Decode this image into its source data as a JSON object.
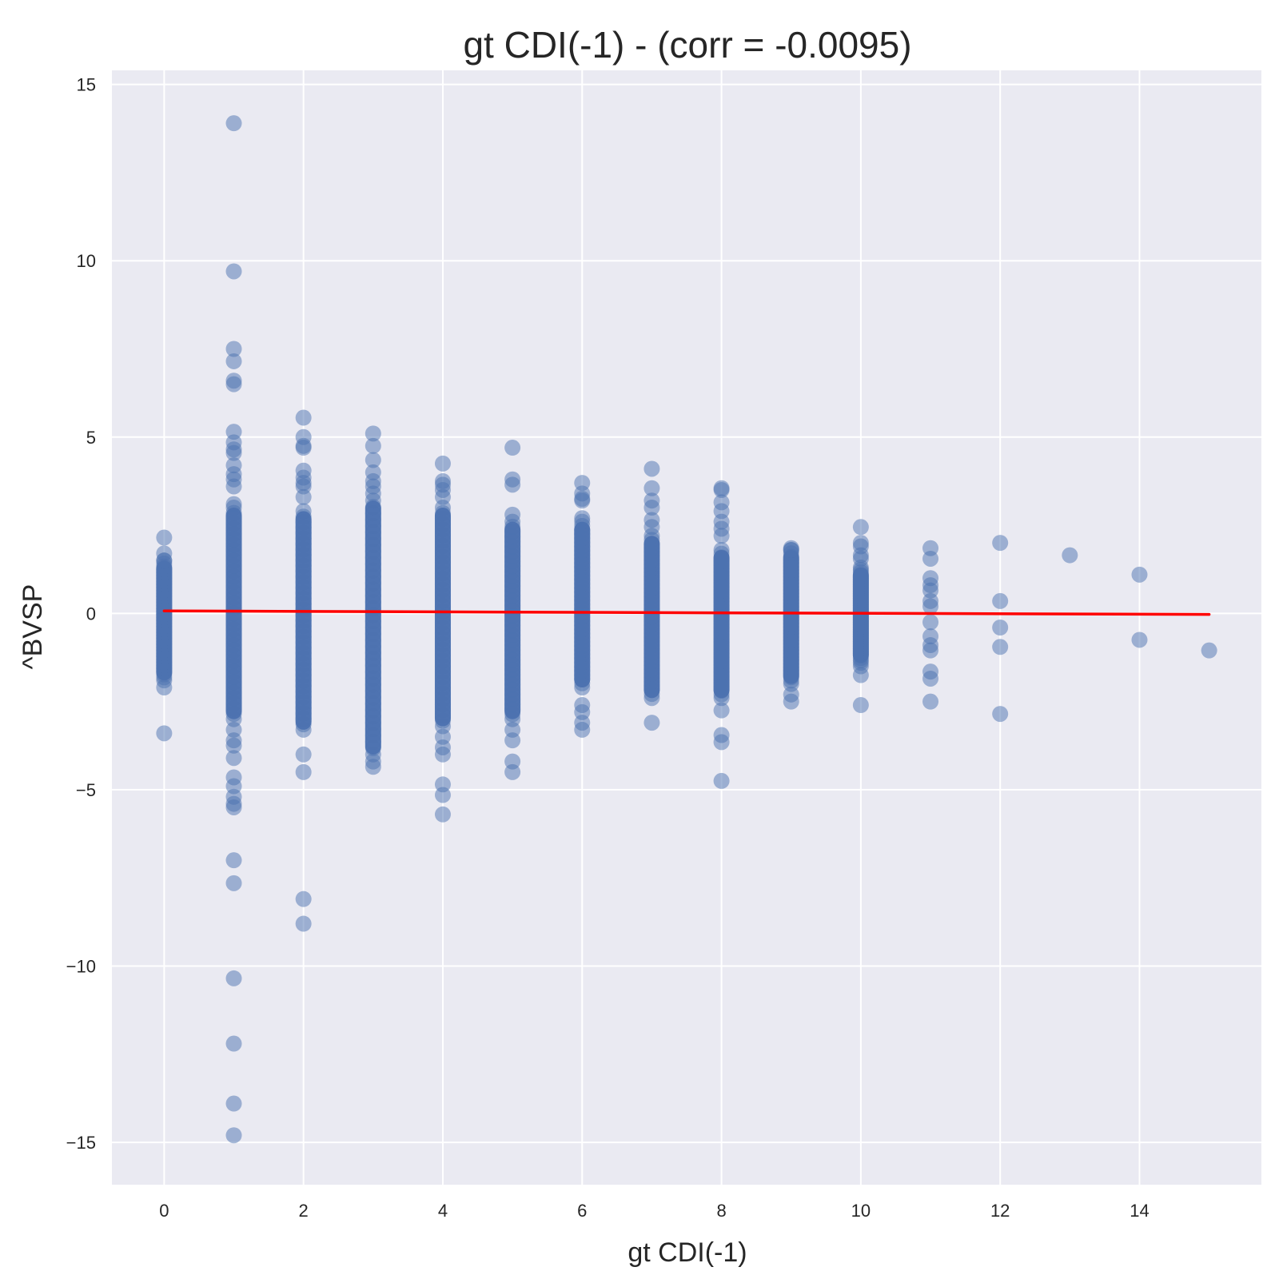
{
  "chart_data": {
    "type": "scatter",
    "title": "gt CDI(-1) - (corr = -0.0095)",
    "xlabel": "gt CDI(-1)",
    "ylabel": "^BVSP",
    "xlim": [
      -0.75,
      15.75
    ],
    "ylim": [
      -16.2,
      15.4
    ],
    "x_ticks": [
      0,
      2,
      4,
      6,
      8,
      10,
      12,
      14
    ],
    "y_ticks": [
      -15,
      -10,
      -5,
      0,
      5,
      10,
      15
    ],
    "y_tick_labels": [
      "−15",
      "−10",
      "−5",
      "0",
      "5",
      "10",
      "15"
    ],
    "grid": true,
    "legend": "none",
    "colors": {
      "background": "#eaeaf2",
      "grid": "#ffffff",
      "points": "#4c72b0",
      "regression_line": "#ff0000"
    },
    "point_alpha": 0.5,
    "dense_bands": [
      {
        "x": 0,
        "low": -1.9,
        "high": 1.5
      },
      {
        "x": 1,
        "low": -3.0,
        "high": 3.0
      },
      {
        "x": 2,
        "low": -3.3,
        "high": 2.9
      },
      {
        "x": 3,
        "low": -4.0,
        "high": 3.2
      },
      {
        "x": 4,
        "low": -3.2,
        "high": 3.0
      },
      {
        "x": 5,
        "low": -3.0,
        "high": 2.6
      },
      {
        "x": 6,
        "low": -2.1,
        "high": 2.6
      },
      {
        "x": 7,
        "low": -2.4,
        "high": 2.2
      },
      {
        "x": 8,
        "low": -2.4,
        "high": 1.8
      },
      {
        "x": 9,
        "low": -2.0,
        "high": 1.8
      },
      {
        "x": 10,
        "low": -1.4,
        "high": 1.3
      }
    ],
    "outliers": [
      {
        "x": 0,
        "y": [
          2.15,
          1.7,
          1.5,
          -2.1,
          -3.4
        ]
      },
      {
        "x": 1,
        "y": [
          13.9,
          9.7,
          7.5,
          7.15,
          6.6,
          6.5,
          5.15,
          4.85,
          4.65,
          4.55,
          4.2,
          3.95,
          3.8,
          3.6,
          3.1,
          -3.3,
          -3.6,
          -3.75,
          -4.1,
          -4.65,
          -4.9,
          -5.2,
          -5.4,
          -5.5,
          -7.0,
          -7.65,
          -10.35,
          -12.2,
          -13.9,
          -14.8
        ]
      },
      {
        "x": 2,
        "y": [
          5.55,
          5.0,
          4.75,
          4.7,
          4.05,
          3.85,
          3.7,
          3.6,
          3.3,
          -4.0,
          -4.5,
          -8.1,
          -8.8
        ]
      },
      {
        "x": 3,
        "y": [
          5.1,
          4.75,
          4.35,
          4.0,
          3.75,
          3.6,
          3.4,
          -4.2,
          -4.35
        ]
      },
      {
        "x": 4,
        "y": [
          4.25,
          3.75,
          3.65,
          3.5,
          3.3,
          -3.5,
          -3.8,
          -4.0,
          -4.85,
          -5.15,
          -5.7
        ]
      },
      {
        "x": 5,
        "y": [
          4.7,
          3.8,
          3.65,
          2.8,
          -3.3,
          -3.6,
          -4.2,
          -4.5
        ]
      },
      {
        "x": 6,
        "y": [
          3.7,
          3.4,
          3.2,
          3.25,
          2.7,
          -2.6,
          -2.8,
          -3.1,
          -3.3
        ]
      },
      {
        "x": 7,
        "y": [
          4.1,
          3.55,
          3.2,
          3.0,
          2.65,
          2.45,
          -3.1
        ]
      },
      {
        "x": 8,
        "y": [
          3.55,
          3.5,
          3.15,
          2.9,
          2.6,
          2.4,
          2.2,
          -2.75,
          -3.45,
          -3.65,
          -4.75
        ]
      },
      {
        "x": 9,
        "y": [
          1.85,
          1.8,
          -2.3,
          -2.5
        ]
      },
      {
        "x": 10,
        "y": [
          2.45,
          2.0,
          1.9,
          1.65,
          1.55,
          -1.5,
          -1.75,
          -2.6
        ]
      },
      {
        "x": 11,
        "y": [
          1.85,
          1.55,
          1.0,
          0.8,
          0.65,
          0.35,
          0.2,
          -0.25,
          -0.65,
          -0.9,
          -1.05,
          -1.65,
          -1.85,
          -2.5
        ]
      },
      {
        "x": 12,
        "y": [
          2.0,
          0.35,
          -0.4,
          -0.95,
          -2.85
        ]
      },
      {
        "x": 13,
        "y": [
          1.65
        ]
      },
      {
        "x": 14,
        "y": [
          1.1,
          -0.75
        ]
      },
      {
        "x": 15,
        "y": [
          -1.05
        ]
      }
    ],
    "regression_line": {
      "x": [
        0,
        15
      ],
      "y": [
        0.07,
        -0.03
      ]
    }
  }
}
